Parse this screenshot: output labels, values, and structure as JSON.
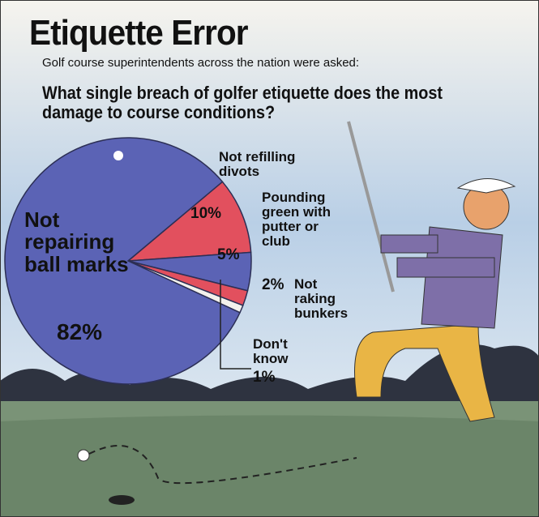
{
  "chart_data": {
    "type": "pie",
    "title": "Etiquette Error",
    "subtitle": "Golf course superintendents across the nation were asked:",
    "question": "What single breach of golfer etiquette does the most damage to course conditions?",
    "categories": [
      "Not repairing ball marks",
      "Not refilling divots",
      "Pounding green with putter or club",
      "Not raking bunkers",
      "Don't know"
    ],
    "values": [
      82,
      10,
      5,
      2,
      1
    ],
    "value_labels": [
      "82%",
      "10%",
      "5%",
      "2%",
      "1%"
    ],
    "colors": [
      "#5b63b5",
      "#e2505e",
      "#5b63b5",
      "#e2505e",
      "#f3f1ec"
    ]
  }
}
